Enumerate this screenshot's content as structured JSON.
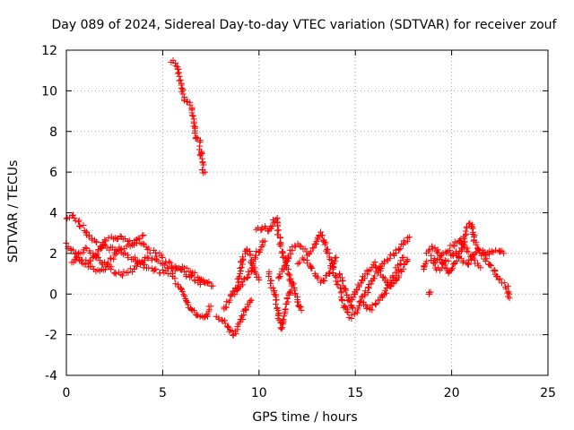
{
  "chart_data": {
    "type": "scatter",
    "title": "Day 089 of 2024, Sidereal Day-to-day VTEC variation (SDTVAR) for receiver zouf",
    "xlabel": "GPS time / hours",
    "ylabel": "SDTVAR / TECUs",
    "xlim": [
      0,
      25
    ],
    "ylim": [
      -4,
      12
    ],
    "xticks": [
      0,
      5,
      10,
      15,
      20,
      25
    ],
    "yticks": [
      -4,
      -2,
      0,
      2,
      4,
      6,
      8,
      10,
      12
    ],
    "grid": true,
    "marker": "plus",
    "series": [
      {
        "name": "SDTVAR",
        "color": "#ff0000",
        "tracks": [
          [
            [
              5.5,
              11.5
            ],
            [
              5.7,
              11.3
            ],
            [
              5.9,
              10.5
            ],
            [
              6.1,
              9.6
            ],
            [
              6.3,
              9.4
            ],
            [
              6.5,
              9.2
            ],
            [
              6.6,
              8.4
            ],
            [
              6.7,
              7.8
            ],
            [
              6.9,
              7.5
            ],
            [
              7.0,
              6.8
            ],
            [
              7.1,
              6.1
            ],
            [
              7.2,
              6.0
            ]
          ],
          [
            [
              0,
              3.8
            ],
            [
              0.3,
              3.9
            ],
            [
              0.6,
              3.6
            ],
            [
              0.9,
              3.2
            ],
            [
              1.2,
              2.8
            ],
            [
              1.6,
              2.5
            ],
            [
              2.0,
              2.3
            ],
            [
              2.5,
              2.2
            ],
            [
              3.0,
              2.0
            ],
            [
              3.5,
              1.7
            ],
            [
              4.0,
              1.4
            ],
            [
              4.5,
              1.2
            ],
            [
              5.0,
              1.1
            ],
            [
              5.4,
              1.0
            ],
            [
              5.7,
              0.6
            ],
            [
              6.0,
              0.2
            ],
            [
              6.3,
              -0.5
            ],
            [
              6.6,
              -0.9
            ],
            [
              6.9,
              -1.1
            ],
            [
              7.2,
              -1.2
            ],
            [
              7.5,
              -0.6
            ]
          ],
          [
            [
              0,
              2.4
            ],
            [
              0.4,
              2.0
            ],
            [
              0.8,
              1.6
            ],
            [
              1.2,
              1.3
            ],
            [
              1.6,
              1.1
            ],
            [
              2.0,
              1.3
            ],
            [
              2.4,
              1.8
            ],
            [
              2.8,
              2.2
            ],
            [
              3.2,
              2.4
            ],
            [
              3.6,
              2.6
            ],
            [
              4.0,
              2.4
            ],
            [
              4.4,
              2.1
            ],
            [
              4.8,
              1.9
            ],
            [
              5.2,
              1.6
            ],
            [
              5.6,
              1.4
            ],
            [
              6.0,
              1.3
            ],
            [
              6.4,
              1.1
            ],
            [
              6.8,
              0.9
            ],
            [
              7.2,
              0.6
            ],
            [
              7.6,
              0.4
            ]
          ],
          [
            [
              0.3,
              1.5
            ],
            [
              0.6,
              1.9
            ],
            [
              1.0,
              2.2
            ],
            [
              1.4,
              2.0
            ],
            [
              1.8,
              1.6
            ],
            [
              2.2,
              1.3
            ],
            [
              2.6,
              1.0
            ],
            [
              3.0,
              1.0
            ],
            [
              3.4,
              1.2
            ],
            [
              3.8,
              1.5
            ],
            [
              4.2,
              1.8
            ],
            [
              4.6,
              1.7
            ],
            [
              5.0,
              1.5
            ],
            [
              5.4,
              1.3
            ],
            [
              5.8,
              1.2
            ],
            [
              6.2,
              1.0
            ],
            [
              6.6,
              0.7
            ],
            [
              7.0,
              0.5
            ],
            [
              7.4,
              0.6
            ]
          ],
          [
            [
              1.0,
              1.6
            ],
            [
              1.5,
              1.8
            ],
            [
              2.0,
              2.6
            ],
            [
              2.5,
              2.8
            ],
            [
              3.0,
              2.7
            ],
            [
              3.5,
              2.5
            ],
            [
              3.8,
              2.8
            ],
            [
              4.0,
              2.9
            ]
          ],
          [
            [
              7.8,
              -1.0
            ],
            [
              8.1,
              -1.3
            ],
            [
              8.4,
              -1.6
            ],
            [
              8.6,
              -2.0
            ],
            [
              8.9,
              -1.7
            ],
            [
              9.2,
              -1.0
            ],
            [
              9.4,
              -0.6
            ],
            [
              9.6,
              -0.3
            ]
          ],
          [
            [
              8.2,
              -0.8
            ],
            [
              8.5,
              -0.2
            ],
            [
              8.8,
              0.2
            ],
            [
              9.1,
              0.5
            ],
            [
              9.4,
              0.9
            ],
            [
              9.7,
              1.4
            ],
            [
              9.9,
              2.0
            ],
            [
              10.1,
              2.3
            ],
            [
              10.3,
              2.6
            ]
          ],
          [
            [
              8.8,
              0.0
            ],
            [
              9.0,
              1.0
            ],
            [
              9.2,
              1.9
            ],
            [
              9.4,
              2.2
            ],
            [
              9.6,
              1.6
            ],
            [
              9.8,
              1.0
            ],
            [
              10.0,
              0.7
            ]
          ],
          [
            [
              9.9,
              3.1
            ],
            [
              10.2,
              3.3
            ],
            [
              10.5,
              3.1
            ],
            [
              10.7,
              3.4
            ],
            [
              10.9,
              3.8
            ],
            [
              11.0,
              3.0
            ],
            [
              11.2,
              2.2
            ],
            [
              11.4,
              1.5
            ],
            [
              11.6,
              0.8
            ],
            [
              11.8,
              0.3
            ],
            [
              12.0,
              -0.3
            ],
            [
              12.2,
              -0.8
            ]
          ],
          [
            [
              10.5,
              1.0
            ],
            [
              10.7,
              0.3
            ],
            [
              10.9,
              -0.5
            ],
            [
              11.1,
              -1.5
            ],
            [
              11.2,
              -1.7
            ],
            [
              11.4,
              -0.6
            ],
            [
              11.6,
              0.2
            ],
            [
              11.8,
              0.5
            ]
          ],
          [
            [
              11.0,
              0.8
            ],
            [
              11.3,
              1.4
            ],
            [
              11.6,
              2.0
            ],
            [
              11.9,
              2.4
            ],
            [
              12.2,
              2.3
            ],
            [
              12.5,
              2.0
            ],
            [
              12.8,
              2.2
            ],
            [
              13.0,
              2.7
            ],
            [
              13.2,
              3.0
            ],
            [
              13.4,
              2.6
            ],
            [
              13.6,
              2.0
            ],
            [
              13.8,
              1.4
            ],
            [
              14.0,
              0.8
            ],
            [
              14.2,
              0.2
            ],
            [
              14.4,
              -0.5
            ],
            [
              14.6,
              -0.9
            ],
            [
              14.8,
              -1.2
            ]
          ],
          [
            [
              12.0,
              1.5
            ],
            [
              12.3,
              1.8
            ],
            [
              12.6,
              1.5
            ],
            [
              12.9,
              1.0
            ],
            [
              13.2,
              0.6
            ],
            [
              13.5,
              0.8
            ],
            [
              13.8,
              1.3
            ],
            [
              14.0,
              1.8
            ]
          ],
          [
            [
              14.2,
              1.0
            ],
            [
              14.5,
              0.2
            ],
            [
              14.8,
              -0.6
            ],
            [
              15.0,
              -0.9
            ],
            [
              15.2,
              -0.5
            ],
            [
              15.5,
              0.0
            ],
            [
              15.8,
              0.5
            ],
            [
              16.1,
              1.0
            ],
            [
              16.4,
              1.5
            ],
            [
              16.7,
              1.8
            ],
            [
              17.0,
              2.0
            ],
            [
              17.3,
              2.2
            ],
            [
              17.6,
              2.6
            ],
            [
              17.8,
              2.8
            ]
          ],
          [
            [
              14.8,
              -0.3
            ],
            [
              15.1,
              0.3
            ],
            [
              15.4,
              0.8
            ],
            [
              15.7,
              1.2
            ],
            [
              16.0,
              1.5
            ],
            [
              16.3,
              1.1
            ],
            [
              16.6,
              0.6
            ],
            [
              16.9,
              0.4
            ],
            [
              17.2,
              0.9
            ],
            [
              17.5,
              1.4
            ],
            [
              17.7,
              1.7
            ]
          ],
          [
            [
              15.4,
              -0.4
            ],
            [
              15.7,
              -0.8
            ],
            [
              16.0,
              -0.6
            ],
            [
              16.3,
              -0.2
            ],
            [
              16.6,
              0.2
            ],
            [
              16.9,
              0.8
            ],
            [
              17.2,
              1.3
            ],
            [
              17.5,
              1.8
            ]
          ],
          [
            [
              18.5,
              1.2
            ],
            [
              18.7,
              1.6
            ]
          ],
          [
            [
              18.8,
              -0.1
            ],
            [
              18.9,
              0.1
            ]
          ],
          [
            [
              18.7,
              2.1
            ],
            [
              19.0,
              2.4
            ],
            [
              19.3,
              2.0
            ],
            [
              19.6,
              1.4
            ],
            [
              19.9,
              1.0
            ],
            [
              20.2,
              1.6
            ],
            [
              20.5,
              2.2
            ],
            [
              20.8,
              3.3
            ],
            [
              21.0,
              3.5
            ],
            [
              21.2,
              2.6
            ],
            [
              21.5,
              2.1
            ],
            [
              21.8,
              1.9
            ],
            [
              22.1,
              2.1
            ],
            [
              22.4,
              2.2
            ],
            [
              22.7,
              2.0
            ]
          ],
          [
            [
              18.9,
              1.8
            ],
            [
              19.2,
              1.6
            ],
            [
              19.5,
              1.9
            ],
            [
              19.8,
              2.2
            ],
            [
              20.1,
              2.4
            ],
            [
              20.4,
              2.7
            ],
            [
              20.6,
              2.4
            ],
            [
              20.9,
              2.0
            ],
            [
              21.2,
              1.6
            ],
            [
              21.5,
              1.3
            ]
          ],
          [
            [
              19.0,
              1.5
            ],
            [
              19.3,
              1.2
            ],
            [
              19.6,
              1.5
            ],
            [
              19.9,
              1.8
            ],
            [
              20.2,
              2.0
            ],
            [
              20.5,
              1.7
            ],
            [
              20.8,
              1.4
            ],
            [
              21.1,
              1.9
            ],
            [
              21.4,
              2.2
            ],
            [
              21.7,
              1.8
            ],
            [
              22.0,
              1.4
            ],
            [
              22.3,
              1.0
            ],
            [
              22.6,
              0.6
            ],
            [
              22.9,
              0.3
            ],
            [
              23.0,
              -0.2
            ]
          ]
        ]
      }
    ]
  }
}
